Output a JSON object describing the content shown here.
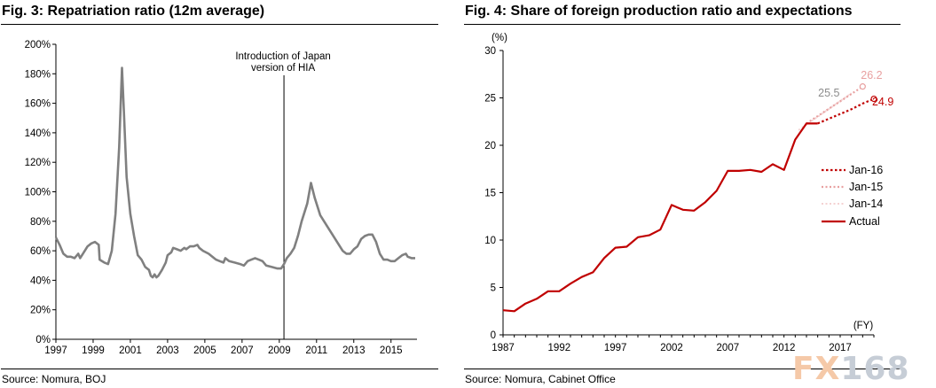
{
  "left_chart_title": "Fig. 3: Repatriation ratio (12m average)",
  "right_chart_title": "Fig. 4: Share of foreign production ratio and expectations",
  "left_source": "Source: Nomura, BOJ",
  "right_source": "Source: Nomura, Cabinet Office",
  "watermark": {
    "part1": "FX",
    "part2": "168"
  },
  "colors": {
    "line_gray": "#808080",
    "actual": "#c00000",
    "jan16": "#c00000",
    "jan15": "#e8a0a0",
    "jan14": "#f4d2d2",
    "label_25_5": "#8c8c8c",
    "label_26_2": "#e8a0a0"
  },
  "chart_data": [
    {
      "type": "line",
      "title": "Fig. 3: Repatriation ratio (12m average)",
      "xlabel": "",
      "ylabel": "",
      "xlim": [
        1997,
        2016.3
      ],
      "ylim": [
        0,
        200
      ],
      "y_ticks": [
        0,
        20,
        40,
        60,
        80,
        100,
        120,
        140,
        160,
        180,
        200
      ],
      "y_tick_labels": [
        "0%",
        "20%",
        "40%",
        "60%",
        "80%",
        "100%",
        "120%",
        "140%",
        "160%",
        "180%",
        "200%"
      ],
      "x_ticks": [
        1997,
        1999,
        2001,
        2003,
        2005,
        2007,
        2009,
        2011,
        2013,
        2015
      ],
      "x_tick_labels": [
        "1997",
        "1999",
        "2001",
        "2003",
        "2005",
        "2007",
        "2009",
        "2011",
        "2013",
        "2015"
      ],
      "annotation": {
        "x": 2009.25,
        "lines": [
          "Introduction of Japan",
          "version of HIA"
        ]
      },
      "series": [
        {
          "name": "Repatriation ratio",
          "points": [
            [
              1997.0,
              69
            ],
            [
              1997.2,
              64
            ],
            [
              1997.4,
              58
            ],
            [
              1997.6,
              56
            ],
            [
              1997.8,
              56
            ],
            [
              1998.0,
              55
            ],
            [
              1998.2,
              58
            ],
            [
              1998.3,
              55
            ],
            [
              1998.5,
              59
            ],
            [
              1998.7,
              63
            ],
            [
              1998.9,
              65
            ],
            [
              1999.1,
              66
            ],
            [
              1999.3,
              64
            ],
            [
              1999.35,
              54
            ],
            [
              1999.6,
              52
            ],
            [
              1999.8,
              51
            ],
            [
              2000.0,
              60
            ],
            [
              2000.2,
              85
            ],
            [
              2000.4,
              130
            ],
            [
              2000.55,
              184
            ],
            [
              2000.65,
              155
            ],
            [
              2000.8,
              110
            ],
            [
              2001.0,
              85
            ],
            [
              2001.2,
              70
            ],
            [
              2001.4,
              57
            ],
            [
              2001.6,
              54
            ],
            [
              2001.8,
              49
            ],
            [
              2002.0,
              47
            ],
            [
              2002.1,
              43
            ],
            [
              2002.2,
              42
            ],
            [
              2002.3,
              44
            ],
            [
              2002.4,
              42
            ],
            [
              2002.5,
              43
            ],
            [
              2002.7,
              47
            ],
            [
              2002.9,
              52
            ],
            [
              2003.0,
              57
            ],
            [
              2003.2,
              59
            ],
            [
              2003.3,
              62
            ],
            [
              2003.5,
              61
            ],
            [
              2003.7,
              60
            ],
            [
              2003.9,
              62
            ],
            [
              2004.0,
              61
            ],
            [
              2004.2,
              63
            ],
            [
              2004.4,
              63
            ],
            [
              2004.6,
              64
            ],
            [
              2004.7,
              62
            ],
            [
              2004.9,
              60
            ],
            [
              2005.2,
              58
            ],
            [
              2005.4,
              56
            ],
            [
              2005.6,
              54
            ],
            [
              2005.8,
              53
            ],
            [
              2006.0,
              52
            ],
            [
              2006.1,
              55
            ],
            [
              2006.3,
              53
            ],
            [
              2006.6,
              52
            ],
            [
              2006.9,
              51
            ],
            [
              2007.1,
              50
            ],
            [
              2007.3,
              53
            ],
            [
              2007.5,
              54
            ],
            [
              2007.7,
              55
            ],
            [
              2007.9,
              54
            ],
            [
              2008.1,
              53
            ],
            [
              2008.3,
              50
            ],
            [
              2008.6,
              49
            ],
            [
              2008.9,
              48
            ],
            [
              2009.1,
              48
            ],
            [
              2009.25,
              51
            ],
            [
              2009.4,
              55
            ],
            [
              2009.6,
              58
            ],
            [
              2009.8,
              62
            ],
            [
              2010.0,
              70
            ],
            [
              2010.2,
              80
            ],
            [
              2010.5,
              92
            ],
            [
              2010.7,
              106
            ],
            [
              2010.9,
              96
            ],
            [
              2011.2,
              84
            ],
            [
              2011.5,
              78
            ],
            [
              2011.8,
              72
            ],
            [
              2012.1,
              66
            ],
            [
              2012.4,
              60
            ],
            [
              2012.6,
              58
            ],
            [
              2012.8,
              58
            ],
            [
              2013.0,
              61
            ],
            [
              2013.2,
              63
            ],
            [
              2013.4,
              68
            ],
            [
              2013.6,
              70
            ],
            [
              2013.8,
              71
            ],
            [
              2014.0,
              71
            ],
            [
              2014.2,
              66
            ],
            [
              2014.4,
              58
            ],
            [
              2014.6,
              54
            ],
            [
              2014.8,
              54
            ],
            [
              2015.0,
              53
            ],
            [
              2015.2,
              53
            ],
            [
              2015.4,
              55
            ],
            [
              2015.6,
              57
            ],
            [
              2015.8,
              58
            ],
            [
              2015.9,
              56
            ],
            [
              2016.1,
              55
            ],
            [
              2016.3,
              55
            ]
          ]
        }
      ]
    },
    {
      "type": "line",
      "title": "Fig. 4: Share of foreign production ratio and expectations",
      "xlabel": "(FY)",
      "ylabel": "(%)",
      "xlim": [
        1987,
        2020
      ],
      "ylim": [
        0,
        30
      ],
      "y_ticks": [
        0,
        5,
        10,
        15,
        20,
        25,
        30
      ],
      "y_tick_labels": [
        "0",
        "5",
        "10",
        "15",
        "20",
        "25",
        "30"
      ],
      "x_ticks": [
        1987,
        1992,
        1997,
        2002,
        2007,
        2012,
        2017
      ],
      "x_tick_labels": [
        "1987",
        "1992",
        "1997",
        "2002",
        "2007",
        "2012",
        "2017"
      ],
      "legend": [
        "Jan-16",
        "Jan-15",
        "Jan-14",
        "Actual"
      ],
      "data_labels": [
        {
          "text": "26.2",
          "x": 2019.8,
          "y": 27.4,
          "series": "Jan-15"
        },
        {
          "text": "25.5",
          "x": 2016.0,
          "y": 25.5,
          "series": "Jan-14"
        },
        {
          "text": "24.9",
          "x": 2020.8,
          "y": 24.6,
          "series": "Jan-16"
        }
      ],
      "series": [
        {
          "name": "Actual",
          "style": "solid",
          "x": [
            1987,
            1988,
            1989,
            1990,
            1991,
            1992,
            1993,
            1994,
            1995,
            1996,
            1997,
            1998,
            1999,
            2000,
            2001,
            2002,
            2003,
            2004,
            2005,
            2006,
            2007,
            2008,
            2009,
            2010,
            2011,
            2012,
            2013,
            2014,
            2015
          ],
          "values": [
            2.6,
            2.5,
            3.3,
            3.8,
            4.6,
            4.6,
            5.4,
            6.1,
            6.6,
            8.1,
            9.2,
            9.3,
            10.3,
            10.5,
            11.1,
            13.7,
            13.2,
            13.1,
            14.0,
            15.2,
            17.3,
            17.3,
            17.4,
            17.2,
            18.0,
            17.4,
            20.6,
            22.3,
            22.3
          ]
        },
        {
          "name": "Jan-16",
          "style": "dotted",
          "x": [
            2015,
            2016,
            2017,
            2018,
            2019,
            2020
          ],
          "values": [
            22.3,
            22.8,
            23.3,
            23.8,
            24.4,
            24.9
          ],
          "end_marker": true
        },
        {
          "name": "Jan-15",
          "style": "dotted",
          "x": [
            2014,
            2019
          ],
          "values": [
            22.3,
            26.2
          ],
          "end_marker": true
        },
        {
          "name": "Jan-14",
          "style": "dotted",
          "x": [
            2013.3,
            2018
          ],
          "values": [
            21.6,
            25.5
          ],
          "end_marker": false
        }
      ]
    }
  ]
}
